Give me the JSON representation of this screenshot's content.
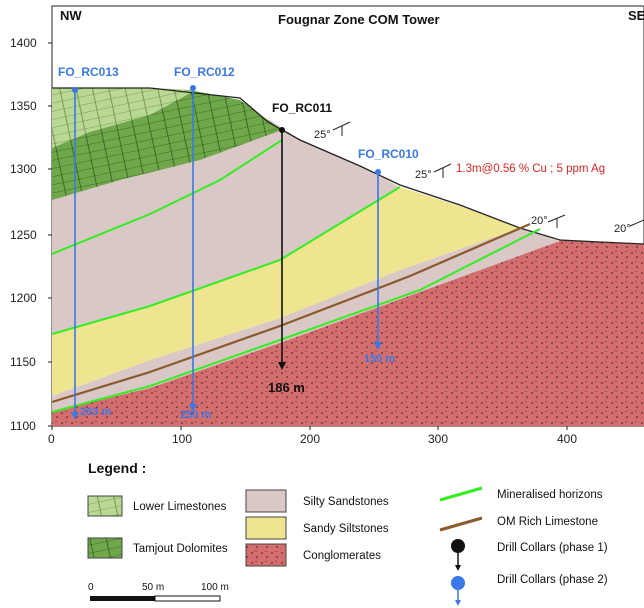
{
  "header": {
    "left_dir": "NW",
    "right_dir": "SE",
    "title": "Fougnar Zone COM Tower"
  },
  "axes": {
    "y_ticks": [
      "1400",
      "1350",
      "1300",
      "1250",
      "1200",
      "1150",
      "1100"
    ],
    "x_ticks": [
      "0",
      "100",
      "200",
      "300",
      "400"
    ]
  },
  "drill_holes": [
    {
      "id": "FO_RC013",
      "depth_label": "263 m",
      "phase": 2
    },
    {
      "id": "FO_RC012",
      "depth_label": "250 m",
      "phase": 2
    },
    {
      "id": "FO_RC011",
      "depth_label": "186 m",
      "phase": 1
    },
    {
      "id": "FO_RC010",
      "depth_label": "150 m",
      "phase": 2
    }
  ],
  "annotations": {
    "assay": "1.3m@0.56 % Cu ; 5 ppm Ag",
    "dips": [
      "25°",
      "25°",
      "20°",
      "20°"
    ]
  },
  "legend": {
    "title": "Legend :",
    "items": {
      "lower_limestones": "Lower Limestones",
      "tamjout_dolomites": "Tamjout Dolomites",
      "silty_sandstones": "Silty Sandstones",
      "sandy_siltstones": "Sandy Siltstones",
      "conglomerates": "Conglomerates",
      "mineralised": "Mineralised horizons",
      "om_limestone": "OM Rich Limestone",
      "collars_phase1": "Drill Collars (phase 1)",
      "collars_phase2": "Drill Collars (phase 2)"
    },
    "scale": {
      "zero": "0",
      "mid": "50 m",
      "end": "100 m"
    }
  },
  "colors": {
    "silty_sandstone": "#d9c8c6",
    "sandy_siltstone": "#efe48f",
    "conglomerate": "#d46e6e",
    "dolomite": "#6fa84a",
    "limestone": "#b9d893",
    "mineralised": "#33ee22",
    "om_limestone": "#8a5a2b",
    "phase1": "#111111",
    "phase2": "#3b78e7",
    "assay_text": "#e02424"
  }
}
